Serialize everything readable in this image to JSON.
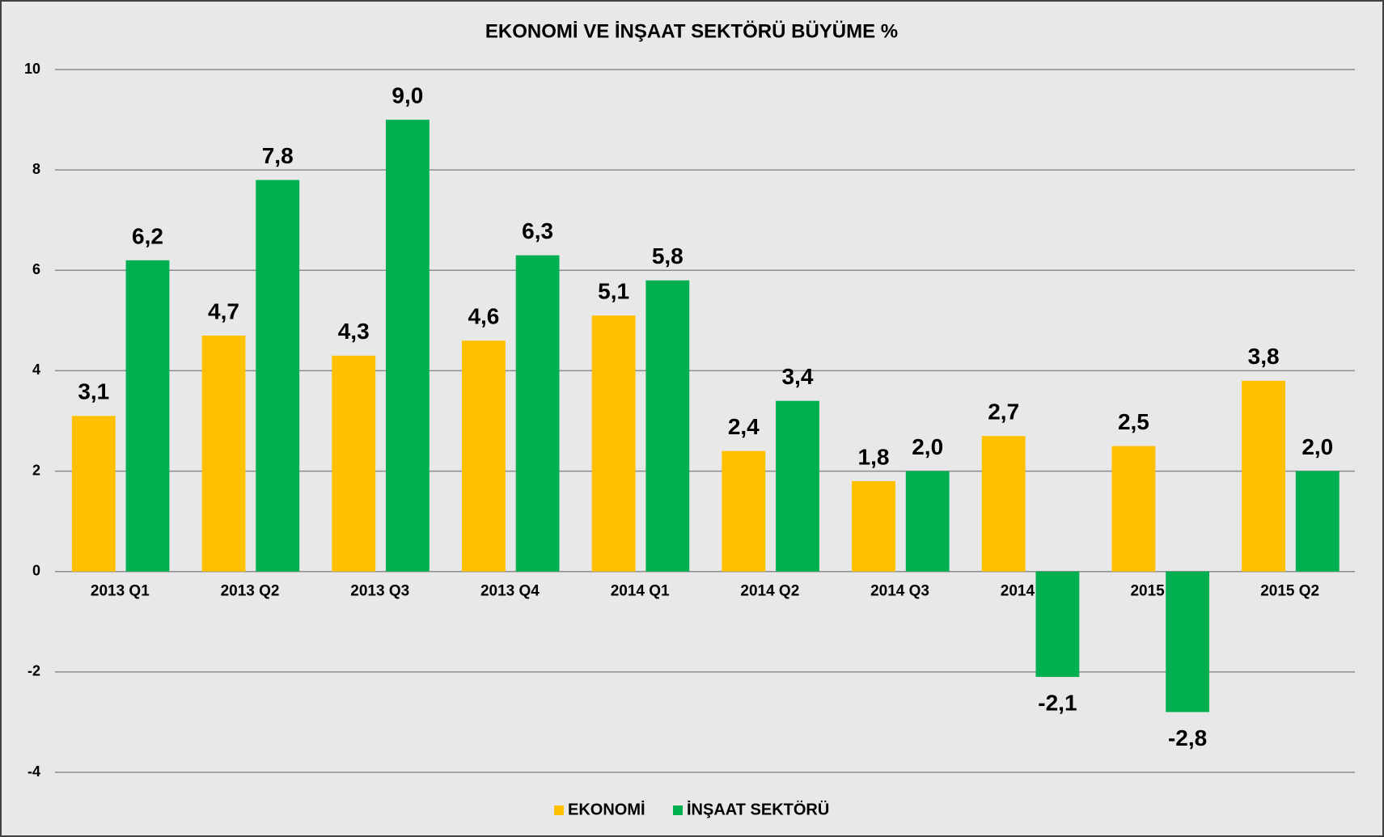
{
  "chart_data": {
    "type": "bar",
    "title": "EKONOMİ VE İNŞAAT SEKTÖRÜ BÜYÜME %",
    "categories": [
      "2013 Q1",
      "2013 Q2",
      "2013 Q3",
      "2013 Q4",
      "2014 Q1",
      "2014 Q2",
      "2014 Q3",
      "2014 Q4",
      "2015 Q1",
      "2015 Q2"
    ],
    "series": [
      {
        "name": "EKONOMİ",
        "color": "#ffc000",
        "values": [
          3.1,
          4.7,
          4.3,
          4.6,
          5.1,
          2.4,
          1.8,
          2.7,
          2.5,
          3.8
        ],
        "value_labels": [
          "3,1",
          "4,7",
          "4,3",
          "4,6",
          "5,1",
          "2,4",
          "1,8",
          "2,7",
          "2,5",
          "3,8"
        ]
      },
      {
        "name": "İNŞAAT SEKTÖRÜ",
        "color": "#00b050",
        "values": [
          6.2,
          7.8,
          9.0,
          6.3,
          5.8,
          3.4,
          2.0,
          -2.1,
          -2.8,
          2.0
        ],
        "value_labels": [
          "6,2",
          "7,8",
          "9,0",
          "6,3",
          "5,8",
          "3,4",
          "2,0",
          "-2,1",
          "-2,8",
          "2,0"
        ]
      }
    ],
    "ylim": [
      -4,
      10
    ],
    "yticks": [
      -4,
      -2,
      0,
      2,
      4,
      6,
      8,
      10
    ],
    "grid": true,
    "legend": "bottom"
  }
}
